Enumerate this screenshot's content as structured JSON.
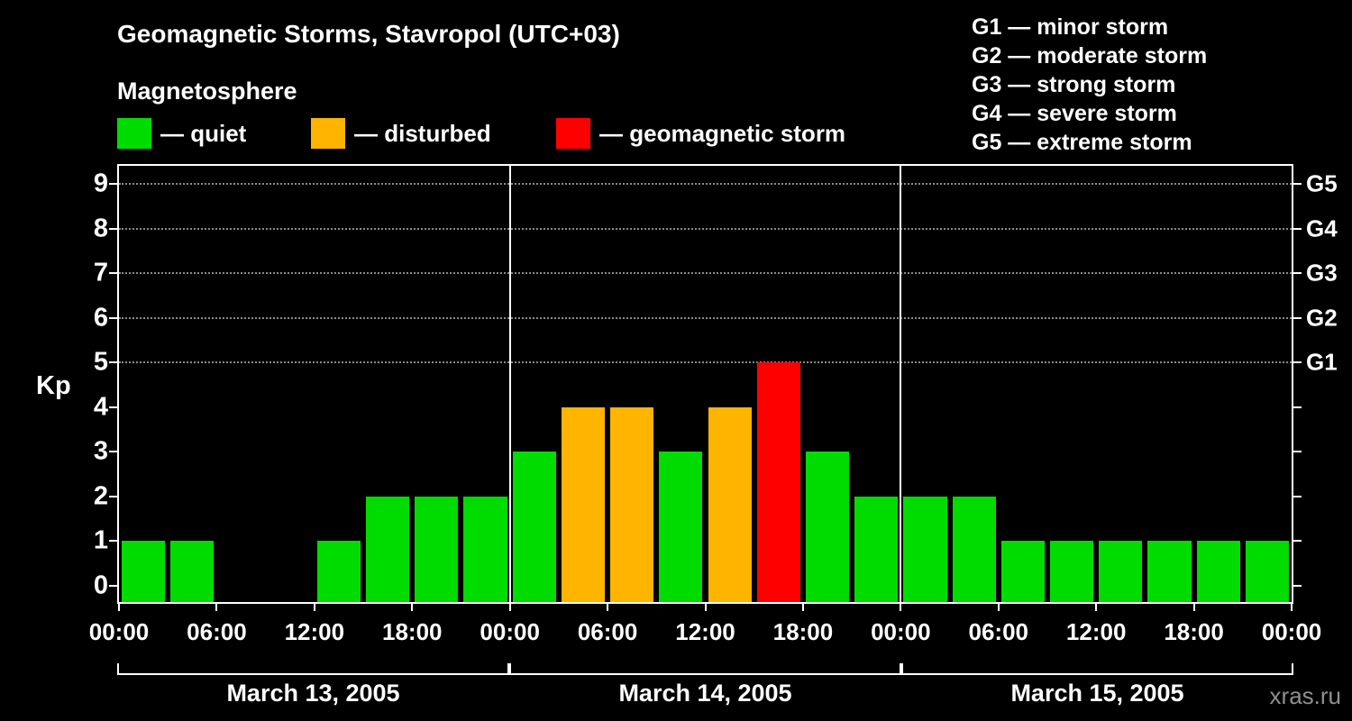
{
  "title": "Geomagnetic Storms, Stavropol (UTC+03)",
  "subtitle": "Magnetosphere",
  "kp_axis_label": "Kp",
  "watermark": "xras.ru",
  "legend": {
    "items": [
      {
        "name": "quiet",
        "label": "— quiet",
        "color": "#00dc00"
      },
      {
        "name": "disturbed",
        "label": "— disturbed",
        "color": "#ffb400"
      },
      {
        "name": "storm",
        "label": "— geomagnetic storm",
        "color": "#ff0000"
      }
    ]
  },
  "g_legend": {
    "items": [
      "G1 — minor storm",
      "G2 — moderate storm",
      "G3 — strong storm",
      "G4 — severe storm",
      "G5 — extreme storm"
    ]
  },
  "chart_data": {
    "type": "bar",
    "title": "Geomagnetic Storms, Stavropol (UTC+03)",
    "ylabel": "Kp",
    "ylim": [
      0,
      9.6
    ],
    "yticks": [
      0,
      1,
      2,
      3,
      4,
      5,
      6,
      7,
      8,
      9
    ],
    "gridline_values": [
      5,
      6,
      7,
      8,
      9
    ],
    "right_axis": [
      {
        "value": 5,
        "label": "G1"
      },
      {
        "value": 6,
        "label": "G2"
      },
      {
        "value": 7,
        "label": "G3"
      },
      {
        "value": 8,
        "label": "G4"
      },
      {
        "value": 9,
        "label": "G5"
      }
    ],
    "interval_hours": 3,
    "x_tick_hours": [
      0,
      6,
      12,
      18
    ],
    "x_tick_labels": [
      "00:00",
      "06:00",
      "12:00",
      "18:00"
    ],
    "final_x_tick_label": "00:00",
    "colors": {
      "quiet": "#00dc00",
      "disturbed": "#ffb400",
      "storm": "#ff0000"
    },
    "color_rule": {
      "quiet_max": 3,
      "disturbed_value": 4,
      "storm_min": 5
    },
    "days": [
      {
        "date": "March 13, 2005",
        "values": [
          1,
          1,
          0,
          0,
          1,
          2,
          2,
          2
        ]
      },
      {
        "date": "March 14, 2005",
        "values": [
          3,
          4,
          4,
          3,
          4,
          5,
          3,
          2
        ]
      },
      {
        "date": "March 15, 2005",
        "values": [
          2,
          2,
          1,
          1,
          1,
          1,
          1,
          1
        ]
      }
    ]
  }
}
